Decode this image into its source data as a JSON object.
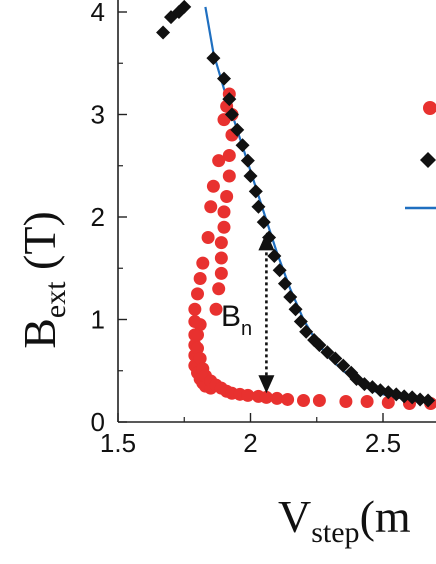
{
  "chart_data": {
    "type": "scatter",
    "xlim": [
      1.5,
      2.7
    ],
    "ylim": [
      0,
      4
    ],
    "x_ticks": [
      "1.5",
      "2",
      "2.5"
    ],
    "y_ticks": [
      "0",
      "1",
      "2",
      "3",
      "4"
    ],
    "xlabel": {
      "main": "V",
      "sub": "step",
      "tail": "(m"
    },
    "ylabel": {
      "main": "B",
      "sub": "ext",
      "tail": " (T)"
    },
    "annotation": {
      "main": "B",
      "sub": "n",
      "x": 2.06,
      "y_top": 1.85,
      "y_bottom": 0.28
    },
    "series": [
      {
        "marker": "circle",
        "color": "#e8312f",
        "x": [
          1.81,
          1.8,
          1.79,
          1.79,
          1.79,
          1.8,
          1.81,
          1.82,
          1.83,
          1.85,
          1.87,
          1.88,
          1.89,
          1.89,
          1.89,
          1.9,
          1.9,
          1.91,
          1.92,
          1.92,
          1.93,
          1.93,
          1.92,
          1.91,
          1.9,
          1.88,
          1.86,
          1.85,
          1.84,
          1.82,
          1.81,
          1.8,
          1.79,
          1.79,
          1.79,
          1.8,
          1.81,
          1.82,
          1.83,
          1.85,
          1.87,
          1.89,
          1.91,
          1.93,
          1.96,
          1.99,
          2.03,
          2.06,
          2.1,
          2.14,
          2.2,
          2.26,
          2.36,
          2.44,
          2.52,
          2.6,
          2.68
        ],
        "y": [
          0.95,
          0.85,
          0.75,
          0.65,
          0.55,
          0.48,
          0.42,
          0.38,
          0.35,
          0.33,
          1.1,
          1.3,
          1.45,
          1.6,
          1.75,
          1.9,
          2.05,
          2.2,
          2.4,
          2.6,
          2.8,
          3.0,
          3.2,
          3.08,
          2.95,
          2.55,
          2.3,
          2.1,
          1.8,
          1.55,
          1.4,
          1.25,
          1.1,
          0.98,
          0.85,
          0.72,
          0.62,
          0.52,
          0.45,
          0.4,
          0.36,
          0.33,
          0.3,
          0.28,
          0.27,
          0.26,
          0.25,
          0.24,
          0.23,
          0.22,
          0.21,
          0.21,
          0.2,
          0.2,
          0.19,
          0.18,
          0.18
        ]
      },
      {
        "marker": "diamond",
        "color": "#111111",
        "x": [
          1.67,
          1.7,
          1.73,
          1.75,
          1.86,
          1.9,
          1.92,
          1.93,
          1.95,
          1.97,
          1.99,
          2.0,
          2.02,
          2.03,
          2.05,
          2.07,
          2.09,
          2.11,
          2.13,
          2.15,
          2.17,
          2.19,
          2.21,
          2.24,
          2.26,
          2.29,
          2.32,
          2.35,
          2.38,
          2.4,
          2.43,
          2.46,
          2.49,
          2.52,
          2.55,
          2.58,
          2.61,
          2.64,
          2.67
        ],
        "y": [
          3.8,
          3.95,
          4.0,
          4.05,
          3.55,
          3.35,
          3.15,
          3.0,
          2.85,
          2.7,
          2.55,
          2.4,
          2.25,
          2.1,
          1.95,
          1.8,
          1.62,
          1.48,
          1.35,
          1.22,
          1.1,
          0.98,
          0.88,
          0.8,
          0.75,
          0.68,
          0.62,
          0.55,
          0.48,
          0.42,
          0.37,
          0.34,
          0.31,
          0.29,
          0.27,
          0.25,
          0.24,
          0.22,
          0.21
        ]
      },
      {
        "marker": "line",
        "color": "#1f6fc0",
        "x": [
          1.83,
          1.86,
          1.9,
          1.95,
          2.0,
          2.05,
          2.1,
          2.15,
          2.2,
          2.25,
          2.3,
          2.35,
          2.4,
          2.45,
          2.5,
          2.55,
          2.6,
          2.65,
          2.7
        ],
        "y": [
          4.05,
          3.6,
          3.25,
          2.85,
          2.45,
          2.05,
          1.65,
          1.3,
          1.0,
          0.78,
          0.62,
          0.5,
          0.4,
          0.32,
          0.27,
          0.24,
          0.22,
          0.21,
          0.21
        ]
      }
    ],
    "legend_markers": [
      {
        "marker": "circle",
        "color": "#e8312f"
      },
      {
        "marker": "diamond",
        "color": "#111111"
      },
      {
        "marker": "line",
        "color": "#1f6fc0"
      }
    ]
  }
}
